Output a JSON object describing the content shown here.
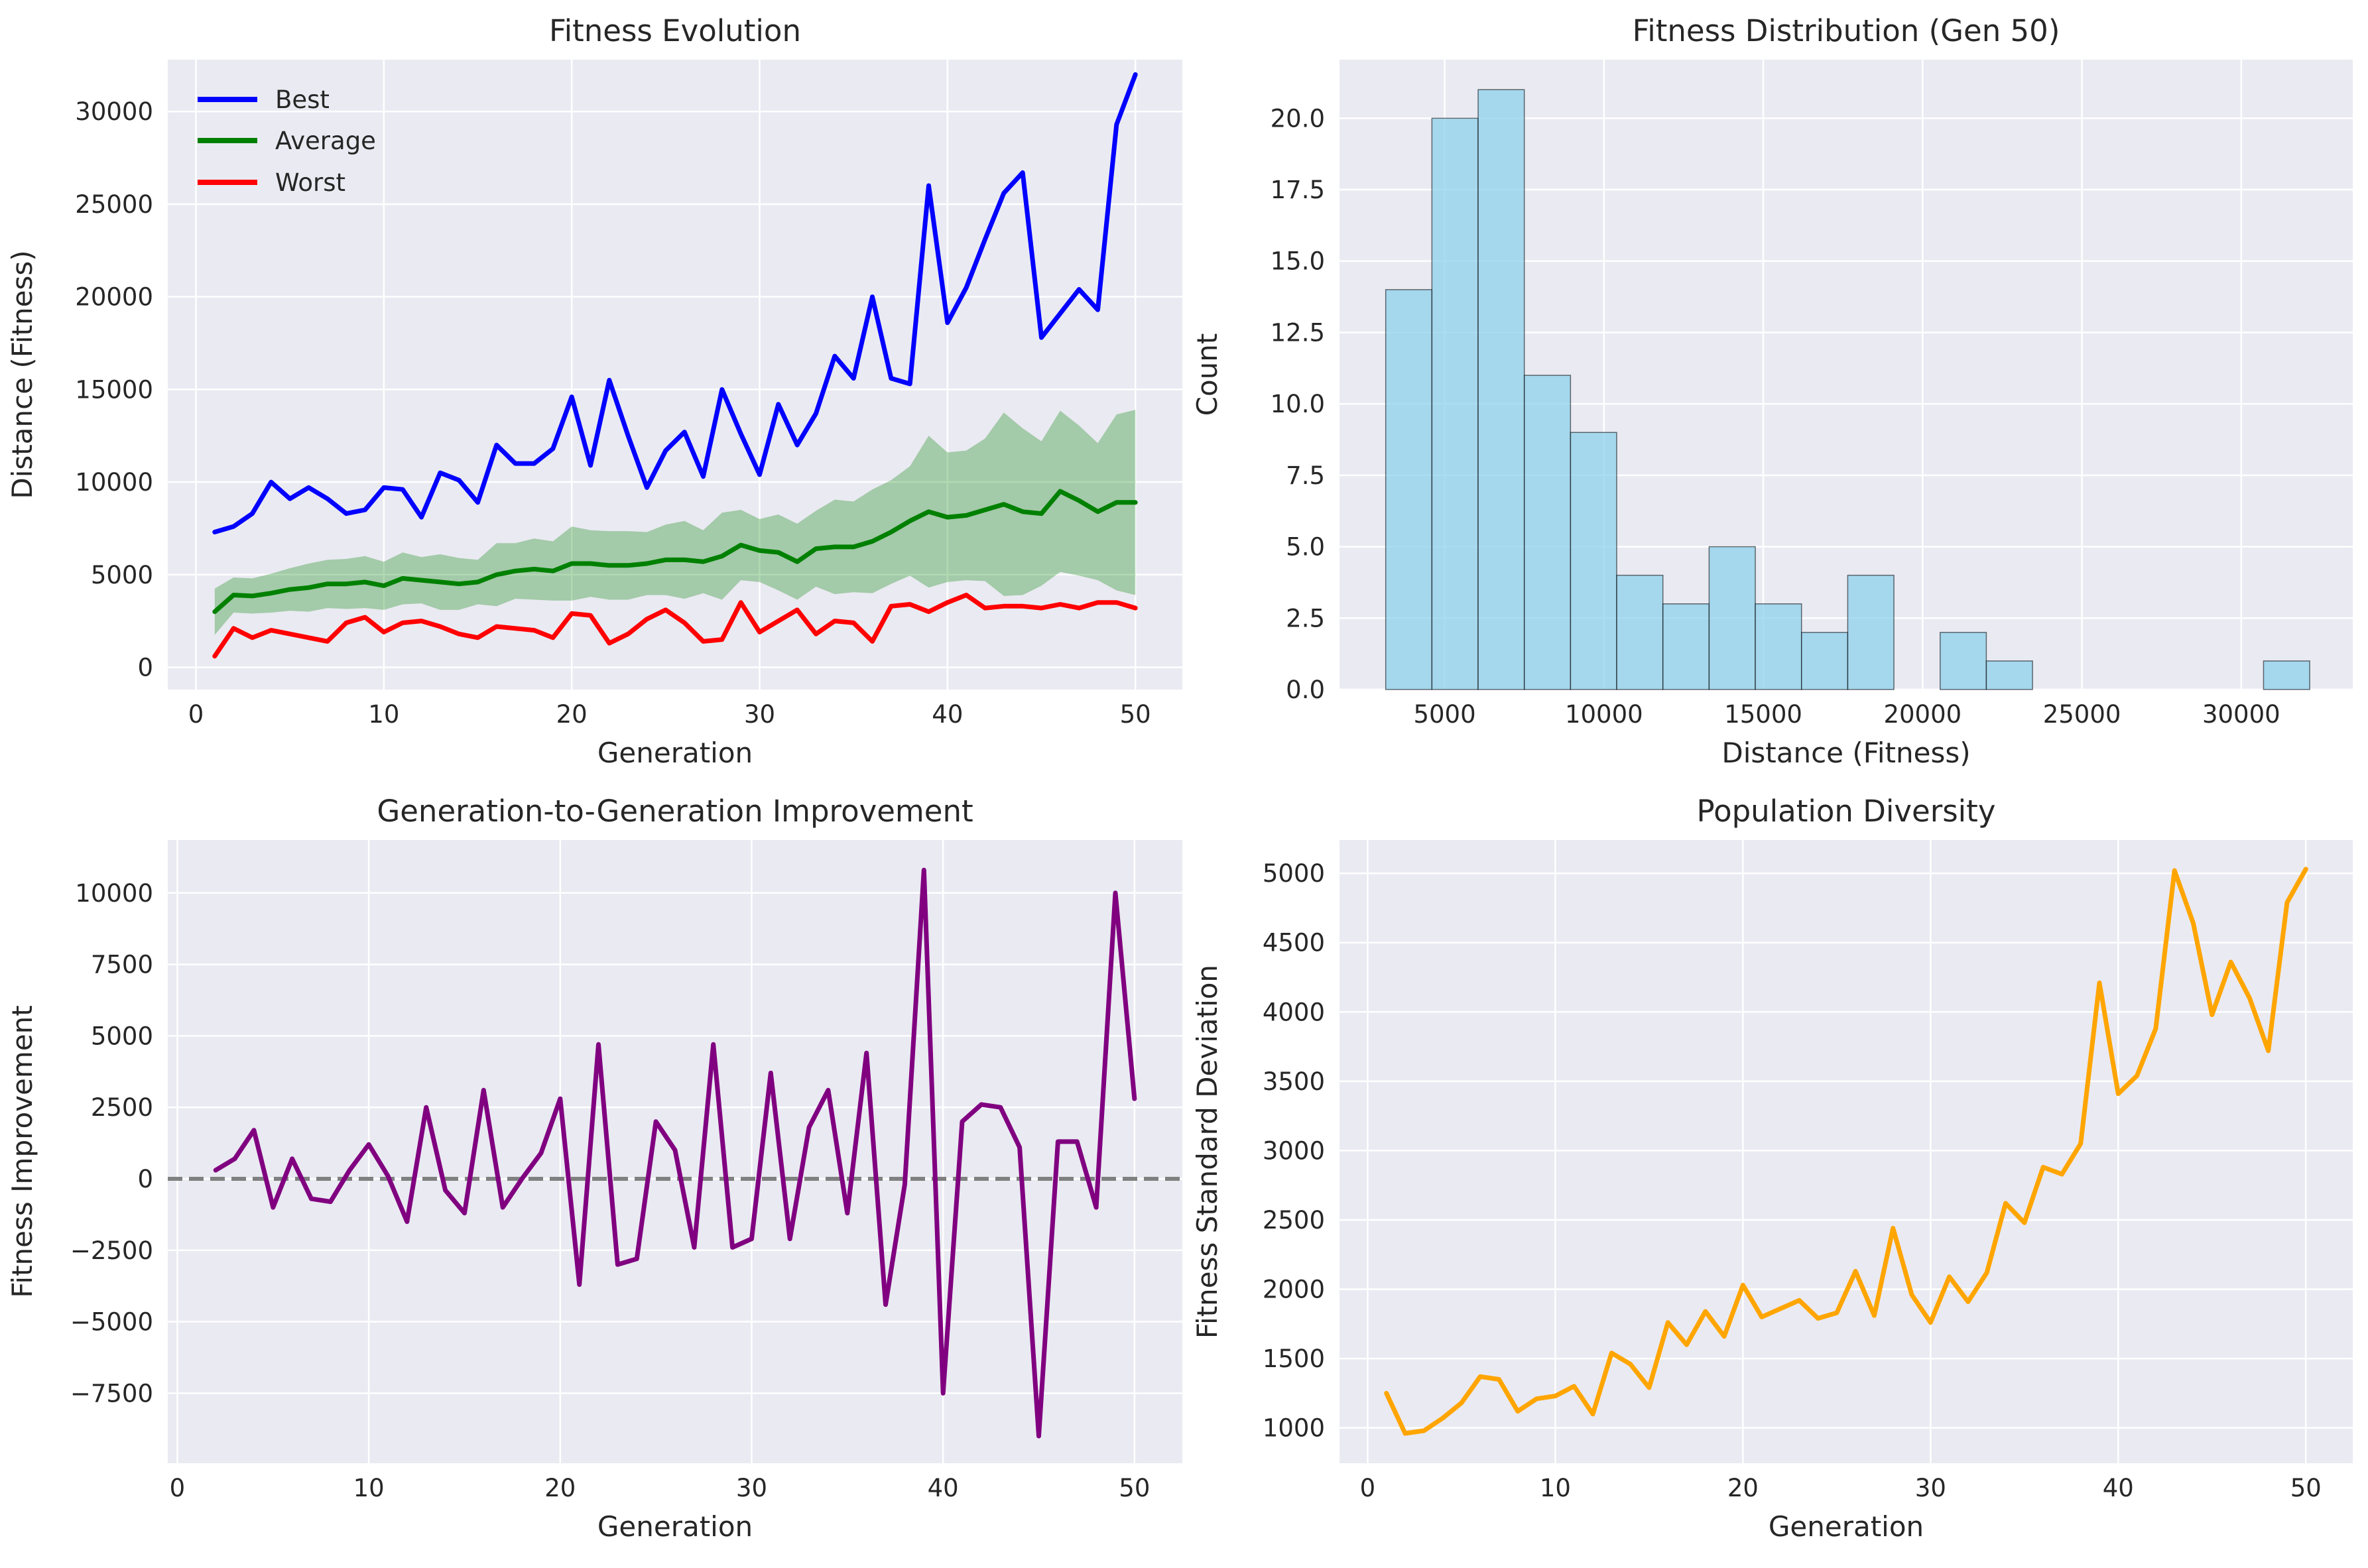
{
  "chart_data": [
    {
      "type": "line",
      "title": "Fitness Evolution",
      "xlabel": "Generation",
      "ylabel": "Distance (Fitness)",
      "xlim": [
        -1.5,
        52.5
      ],
      "ylim": [
        -1200,
        32800
      ],
      "xticks": [
        0,
        10,
        20,
        30,
        40,
        50
      ],
      "yticks": [
        0,
        5000,
        10000,
        15000,
        20000,
        25000,
        30000
      ],
      "grid": true,
      "legend_position": "top-left",
      "x": [
        1,
        2,
        3,
        4,
        5,
        6,
        7,
        8,
        9,
        10,
        11,
        12,
        13,
        14,
        15,
        16,
        17,
        18,
        19,
        20,
        21,
        22,
        23,
        24,
        25,
        26,
        27,
        28,
        29,
        30,
        31,
        32,
        33,
        34,
        35,
        36,
        37,
        38,
        39,
        40,
        41,
        42,
        43,
        44,
        45,
        46,
        47,
        48,
        49,
        50
      ],
      "series": [
        {
          "name": "Best",
          "color": "#0000ff",
          "values": [
            7300,
            7600,
            8300,
            10000,
            9100,
            9700,
            9100,
            8300,
            8500,
            9700,
            9600,
            8100,
            10500,
            10100,
            8900,
            12000,
            11000,
            11000,
            11800,
            14600,
            10900,
            15500,
            12500,
            9700,
            11700,
            12700,
            10300,
            15000,
            12600,
            10400,
            14200,
            12000,
            13700,
            16800,
            15600,
            20000,
            15600,
            15300,
            26000,
            18600,
            20500,
            23100,
            25600,
            26700,
            17800,
            19100,
            20400,
            19300,
            29300,
            32000
          ]
        },
        {
          "name": "Average",
          "color": "#008000",
          "values": [
            3000,
            3900,
            3850,
            4000,
            4200,
            4300,
            4500,
            4500,
            4600,
            4400,
            4800,
            4700,
            4600,
            4500,
            4600,
            5000,
            5200,
            5300,
            5200,
            5600,
            5600,
            5500,
            5500,
            5600,
            5800,
            5800,
            5700,
            6000,
            6600,
            6300,
            6200,
            5700,
            6400,
            6500,
            6500,
            6800,
            7300,
            7900,
            8400,
            8100,
            8200,
            8500,
            8800,
            8400,
            8300,
            9500,
            9000,
            8400,
            8900,
            8900
          ]
        },
        {
          "name": "Worst",
          "color": "#ff0000",
          "values": [
            600,
            2100,
            1600,
            2000,
            1800,
            1600,
            1400,
            2400,
            2700,
            1900,
            2400,
            2500,
            2200,
            1800,
            1600,
            2200,
            2100,
            2000,
            1600,
            2900,
            2800,
            1300,
            1800,
            2600,
            3100,
            2400,
            1400,
            1500,
            3500,
            1900,
            2500,
            3100,
            1800,
            2500,
            2400,
            1400,
            3300,
            3400,
            3000,
            3500,
            3900,
            3200,
            3300,
            3300,
            3200,
            3400,
            3200,
            3500,
            3500,
            3200
          ]
        }
      ],
      "band": {
        "label": "",
        "color": "#008000",
        "upper": [
          4250,
          4850,
          4800,
          5050,
          5350,
          5600,
          5800,
          5850,
          6000,
          5700,
          6200,
          5950,
          6100,
          5900,
          5800,
          6700,
          6700,
          6950,
          6800,
          7600,
          7400,
          7350,
          7350,
          7300,
          7700,
          7900,
          7400,
          8350,
          8500,
          8000,
          8250,
          7750,
          8450,
          9050,
          8950,
          9600,
          10100,
          10850,
          12500,
          11600,
          11700,
          12350,
          13750,
          12900,
          12200,
          13850,
          13050,
          12100,
          13650,
          13900
        ],
        "lower": [
          1750,
          2950,
          2900,
          2950,
          3050,
          3000,
          3200,
          3150,
          3200,
          3100,
          3400,
          3450,
          3100,
          3100,
          3400,
          3300,
          3700,
          3650,
          3600,
          3600,
          3800,
          3650,
          3650,
          3900,
          3900,
          3700,
          4000,
          3650,
          4700,
          4600,
          4150,
          3650,
          4350,
          3950,
          4050,
          4000,
          4500,
          4950,
          4300,
          4600,
          4700,
          4650,
          3850,
          3900,
          4400,
          5150,
          4950,
          4700,
          4150,
          3900
        ]
      }
    },
    {
      "type": "bar",
      "title": "Fitness Distribution (Gen 50)",
      "xlabel": "Distance (Fitness)",
      "ylabel": "Count",
      "xlim": [
        1700,
        33500
      ],
      "ylim": [
        0,
        22.05
      ],
      "xticks": [
        5000,
        10000,
        15000,
        20000,
        25000,
        30000
      ],
      "yticks": [
        0.0,
        2.5,
        5.0,
        7.5,
        10.0,
        12.5,
        15.0,
        17.5,
        20.0
      ],
      "ytick_labels": [
        "0.0",
        "2.5",
        "5.0",
        "7.5",
        "10.0",
        "12.5",
        "15.0",
        "17.5",
        "20.0"
      ],
      "grid": true,
      "bar_color": "#87ceeb",
      "bin_start": 3150,
      "bin_width": 1450,
      "values": [
        14,
        20,
        21,
        11,
        9,
        4,
        3,
        5,
        3,
        2,
        4,
        0,
        2,
        1,
        0,
        0,
        0,
        0,
        0,
        1
      ]
    },
    {
      "type": "line",
      "title": "Generation-to-Generation Improvement",
      "xlabel": "Generation",
      "ylabel": "Fitness Improvement",
      "xlim": [
        -0.5,
        52.5
      ],
      "ylim": [
        -9950,
        11850
      ],
      "xticks": [
        0,
        10,
        20,
        30,
        40,
        50
      ],
      "yticks": [
        -7500,
        -5000,
        -2500,
        0,
        2500,
        5000,
        7500,
        10000
      ],
      "grid": true,
      "reference_line": {
        "y": 0,
        "style": "dashed",
        "color": "#808080"
      },
      "x": [
        2,
        3,
        4,
        5,
        6,
        7,
        8,
        9,
        10,
        11,
        12,
        13,
        14,
        15,
        16,
        17,
        18,
        19,
        20,
        21,
        22,
        23,
        24,
        25,
        26,
        27,
        28,
        29,
        30,
        31,
        32,
        33,
        34,
        35,
        36,
        37,
        38,
        39,
        40,
        41,
        42,
        43,
        44,
        45,
        46,
        47,
        48,
        49,
        50
      ],
      "series": [
        {
          "name": "",
          "color": "#800080",
          "values": [
            300,
            700,
            1700,
            -1000,
            700,
            -700,
            -800,
            300,
            1200,
            100,
            -1500,
            2500,
            -400,
            -1200,
            3100,
            -1000,
            0,
            900,
            2800,
            -3700,
            4700,
            -3000,
            -2800,
            2000,
            1000,
            -2400,
            4700,
            -2400,
            -2100,
            3700,
            -2100,
            1800,
            3100,
            -1200,
            4400,
            -4400,
            -200,
            10800,
            -7500,
            2000,
            2600,
            2500,
            1100,
            -9000,
            1300,
            1300,
            -1000,
            10000,
            2800
          ]
        }
      ]
    },
    {
      "type": "line",
      "title": "Population Diversity",
      "xlabel": "Generation",
      "ylabel": "Fitness Standard Deviation",
      "xlim": [
        -1.5,
        52.5
      ],
      "ylim": [
        745,
        5240
      ],
      "xticks": [
        0,
        10,
        20,
        30,
        40,
        50
      ],
      "yticks": [
        1000,
        1500,
        2000,
        2500,
        3000,
        3500,
        4000,
        4500,
        5000
      ],
      "grid": true,
      "x": [
        1,
        2,
        3,
        4,
        5,
        6,
        7,
        8,
        9,
        10,
        11,
        12,
        13,
        14,
        15,
        16,
        17,
        18,
        19,
        20,
        21,
        22,
        23,
        24,
        25,
        26,
        27,
        28,
        29,
        30,
        31,
        32,
        33,
        34,
        35,
        36,
        37,
        38,
        39,
        40,
        41,
        42,
        43,
        44,
        45,
        46,
        47,
        48,
        49,
        50
      ],
      "series": [
        {
          "name": "",
          "color": "#ffa500",
          "values": [
            1250,
            960,
            980,
            1070,
            1180,
            1370,
            1350,
            1120,
            1210,
            1230,
            1300,
            1100,
            1540,
            1460,
            1290,
            1760,
            1600,
            1840,
            1660,
            2030,
            1800,
            1860,
            1920,
            1790,
            1830,
            2130,
            1810,
            2440,
            1960,
            1760,
            2090,
            1910,
            2120,
            2620,
            2480,
            2880,
            2830,
            3050,
            4210,
            3410,
            3540,
            3880,
            5020,
            4640,
            3980,
            4360,
            4100,
            3720,
            4790,
            5030
          ]
        }
      ]
    }
  ]
}
